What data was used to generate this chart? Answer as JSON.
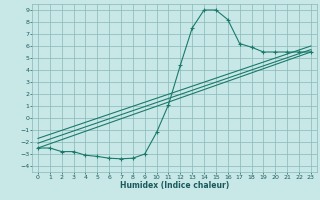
{
  "xlabel": "Humidex (Indice chaleur)",
  "bg_color": "#c8e8e8",
  "grid_color": "#8ab8b8",
  "line_color": "#1a7a6a",
  "xlim": [
    -0.5,
    23.5
  ],
  "ylim": [
    -4.5,
    9.5
  ],
  "xticks": [
    0,
    1,
    2,
    3,
    4,
    5,
    6,
    7,
    8,
    9,
    10,
    11,
    12,
    13,
    14,
    15,
    16,
    17,
    18,
    19,
    20,
    21,
    22,
    23
  ],
  "yticks": [
    -4,
    -3,
    -2,
    -1,
    0,
    1,
    2,
    3,
    4,
    5,
    6,
    7,
    8,
    9
  ],
  "curve_x": [
    0,
    1,
    2,
    3,
    4,
    5,
    6,
    7,
    8,
    9,
    10,
    11,
    12,
    13,
    14,
    15,
    16,
    17,
    18,
    19,
    20,
    21,
    22,
    23
  ],
  "curve_y": [
    -2.5,
    -2.5,
    -2.8,
    -2.8,
    -3.1,
    -3.2,
    -3.35,
    -3.4,
    -3.35,
    -3.0,
    -1.2,
    1.1,
    4.4,
    7.5,
    9.0,
    9.0,
    8.2,
    6.2,
    5.9,
    5.5,
    5.5,
    5.5,
    5.5,
    5.5
  ],
  "line1_x": [
    0,
    23
  ],
  "line1_y": [
    -2.5,
    5.5
  ],
  "line2_x": [
    0,
    23
  ],
  "line2_y": [
    -2.1,
    5.7
  ],
  "line3_x": [
    0,
    23
  ],
  "line3_y": [
    -1.7,
    6.0
  ],
  "tick_fontsize": 4.5,
  "xlabel_fontsize": 5.5,
  "tick_color": "#1a5a5a"
}
